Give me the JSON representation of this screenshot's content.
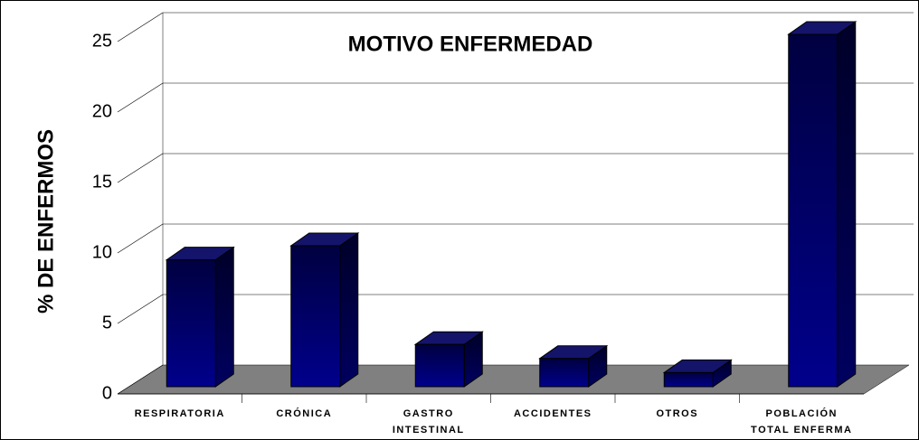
{
  "chart_data": {
    "type": "bar3d",
    "title": "MOTIVO ENFERMEDAD",
    "y_label": "% DE ENFERMOS",
    "categories": [
      [
        "RESPIRATORIA"
      ],
      [
        "CRÓNICA"
      ],
      [
        "GASTRO",
        "INTESTINAL"
      ],
      [
        "ACCIDENTES"
      ],
      [
        "OTROS"
      ],
      [
        "POBLACIÓN",
        "TOTAL ENFERMA"
      ]
    ],
    "values": [
      9,
      10,
      3,
      2,
      1,
      25
    ],
    "color": "#000080",
    "ylim": [
      0,
      25
    ],
    "yticks": [
      0,
      5,
      10,
      15,
      20,
      25
    ],
    "grid": true
  }
}
